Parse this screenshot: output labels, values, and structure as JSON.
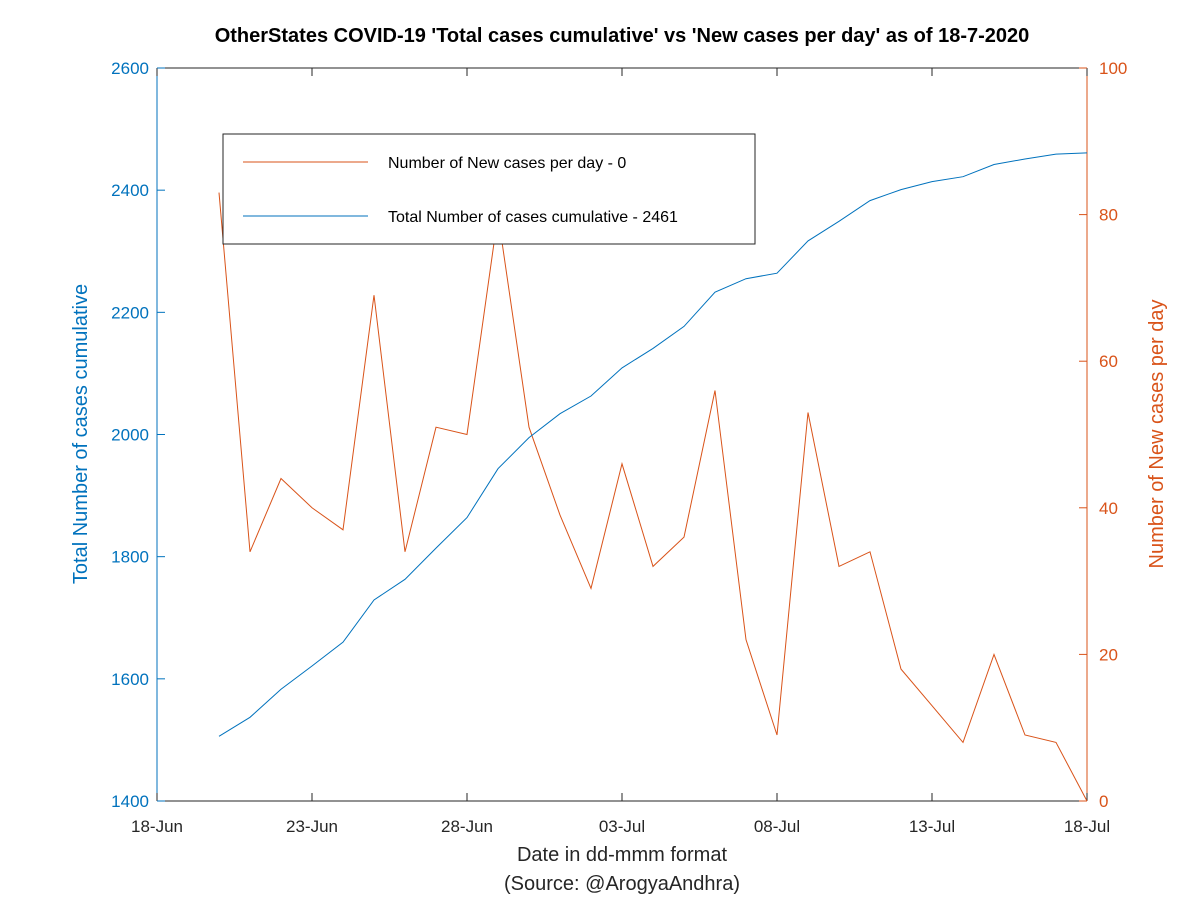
{
  "chart_data": {
    "type": "line",
    "title": "OtherStates COVID-19 'Total cases cumulative' vs 'New cases per day' as of 18-7-2020",
    "xlabel": "Date in dd-mmm format",
    "xlabel_source": "(Source: @ArogyaAndhra)",
    "ylabel_left": "Total Number of cases cumulative",
    "ylabel_right": "Number of New cases per day",
    "x_ticks": [
      "18-Jun",
      "23-Jun",
      "28-Jun",
      "03-Jul",
      "08-Jul",
      "13-Jul",
      "18-Jul"
    ],
    "y_left_ticks": [
      "1400",
      "1600",
      "1800",
      "2000",
      "2200",
      "2400",
      "2600"
    ],
    "y_right_ticks": [
      "0",
      "20",
      "40",
      "60",
      "80",
      "100"
    ],
    "xlim": [
      "18-Jun",
      "18-Jul"
    ],
    "ylim_left": [
      1400,
      2600
    ],
    "ylim_right": [
      0,
      100
    ],
    "grid": false,
    "legend_position": "top-left",
    "colors": {
      "cumulative": "#0072BD",
      "new_cases": "#D95319"
    },
    "x": [
      "20-Jun",
      "21-Jun",
      "22-Jun",
      "23-Jun",
      "24-Jun",
      "25-Jun",
      "26-Jun",
      "27-Jun",
      "28-Jun",
      "29-Jun",
      "30-Jun",
      "01-Jul",
      "02-Jul",
      "03-Jul",
      "04-Jul",
      "05-Jul",
      "06-Jul",
      "07-Jul",
      "08-Jul",
      "09-Jul",
      "10-Jul",
      "11-Jul",
      "12-Jul",
      "13-Jul",
      "14-Jul",
      "15-Jul",
      "16-Jul",
      "17-Jul",
      "18-Jul"
    ],
    "series": [
      {
        "name": "Number of New cases per day - 0",
        "axis": "right",
        "values": [
          83,
          34,
          44,
          40,
          37,
          69,
          34,
          51,
          50,
          80,
          51,
          39,
          29,
          46,
          32,
          36,
          56,
          22,
          9,
          53,
          32,
          34,
          18,
          13,
          8,
          20,
          9,
          8,
          0
        ]
      },
      {
        "name": "Total Number of cases cumulative - 2461",
        "axis": "left",
        "values": [
          1506,
          1537,
          1583,
          1621,
          1660,
          1729,
          1763,
          1814,
          1864,
          1944,
          1995,
          2034,
          2063,
          2109,
          2141,
          2177,
          2233,
          2255,
          2264,
          2317,
          2349,
          2383,
          2401,
          2414,
          2422,
          2442,
          2451,
          2459,
          2461
        ]
      }
    ]
  }
}
